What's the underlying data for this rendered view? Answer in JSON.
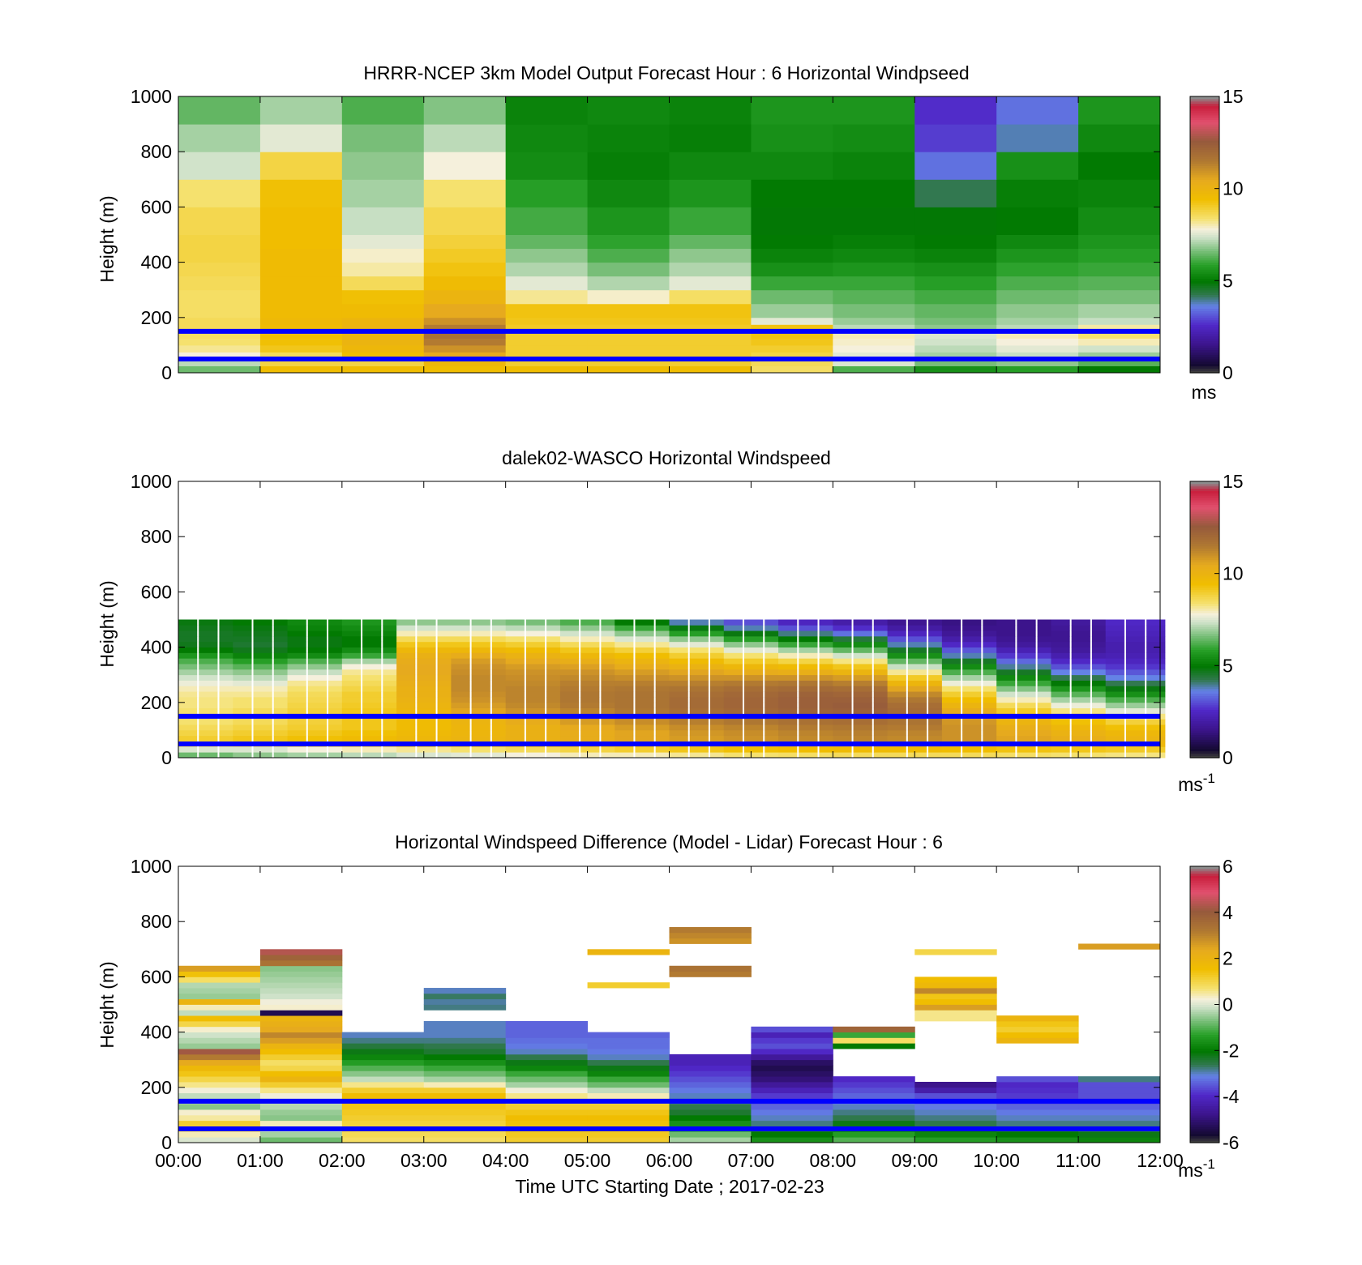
{
  "figure": {
    "x_ticks": [
      "00:00",
      "01:00",
      "02:00",
      "03:00",
      "04:00",
      "05:00",
      "06:00",
      "07:00",
      "08:00",
      "09:00",
      "10:00",
      "11:00",
      "12:00"
    ],
    "x_label": "Time UTC  Starting Date ; 2017-02-23",
    "reference_line_color": "#0000ff",
    "reference_heights_m": [
      50,
      150
    ]
  },
  "chart_data": [
    {
      "type": "heatmap",
      "title": "HRRR-NCEP 3km Model Output   Forecast Hour : 6 Horizontal Windpseed",
      "ylabel": "Height (m)",
      "xlabel": "",
      "ylim": [
        0,
        1000
      ],
      "y_ticks": [
        0,
        200,
        400,
        600,
        800,
        1000
      ],
      "colorbar": {
        "ticks": [
          0,
          5,
          10,
          15
        ],
        "unit": "ms",
        "unit_sup": "",
        "range": [
          0,
          15
        ]
      },
      "x_bins_hours": [
        0,
        1,
        2,
        3,
        4,
        5,
        6,
        7,
        8,
        9,
        10,
        11,
        12
      ],
      "y_bins_m": [
        0,
        25,
        50,
        75,
        100,
        125,
        150,
        175,
        200,
        250,
        300,
        350,
        400,
        450,
        500,
        600,
        700,
        800,
        900,
        1000
      ],
      "values": [
        [
          6.5,
          9.5,
          9.5,
          9.5,
          9.5,
          9.5,
          9.5,
          8.5,
          6.2,
          5.5,
          5.8,
          5.0
        ],
        [
          7.2,
          8.8,
          8.8,
          9.8,
          9.0,
          9.0,
          9.0,
          8.6,
          7.5,
          6.6,
          6.8,
          6.3
        ],
        [
          7.8,
          8.6,
          9.5,
          10.5,
          9.0,
          9.0,
          9.0,
          8.8,
          7.6,
          7.0,
          7.3,
          6.9
        ],
        [
          8.2,
          9.2,
          9.8,
          11.0,
          9.0,
          9.0,
          9.0,
          9.0,
          7.8,
          7.2,
          7.6,
          7.4
        ],
        [
          8.4,
          9.4,
          10.0,
          11.5,
          9.0,
          9.0,
          9.0,
          9.2,
          7.9,
          7.4,
          7.8,
          8.0
        ],
        [
          8.5,
          9.5,
          10.0,
          11.8,
          9.0,
          9.0,
          9.0,
          9.3,
          8.0,
          7.5,
          8.0,
          8.4
        ],
        [
          8.6,
          9.6,
          10.0,
          11.5,
          9.1,
          9.1,
          9.1,
          9.3,
          7.2,
          6.8,
          7.2,
          8.1
        ],
        [
          8.6,
          9.7,
          9.9,
          11.0,
          9.2,
          9.2,
          9.2,
          7.6,
          6.9,
          6.6,
          7.0,
          7.3
        ],
        [
          8.5,
          9.6,
          9.6,
          10.5,
          9.3,
          9.3,
          9.3,
          6.9,
          6.6,
          6.4,
          6.8,
          7.0
        ],
        [
          8.5,
          9.6,
          9.4,
          10.0,
          8.2,
          7.9,
          8.5,
          6.5,
          6.3,
          6.1,
          6.5,
          6.6
        ],
        [
          8.6,
          9.6,
          8.6,
          9.6,
          7.6,
          7.1,
          7.6,
          6.0,
          6.0,
          5.8,
          6.2,
          6.3
        ],
        [
          8.7,
          9.6,
          8.1,
          9.3,
          7.1,
          6.6,
          7.1,
          5.5,
          5.6,
          5.5,
          5.9,
          6.0
        ],
        [
          8.8,
          9.6,
          7.9,
          9.1,
          6.8,
          6.2,
          6.8,
          5.2,
          5.3,
          5.2,
          5.6,
          5.8
        ],
        [
          8.8,
          9.5,
          7.6,
          8.9,
          6.4,
          5.9,
          6.4,
          5.0,
          5.1,
          5.0,
          5.3,
          5.6
        ],
        [
          8.7,
          9.5,
          7.3,
          8.7,
          6.1,
          5.6,
          6.0,
          4.9,
          4.9,
          4.9,
          5.0,
          5.4
        ],
        [
          8.4,
          9.4,
          7.0,
          8.4,
          5.8,
          5.3,
          5.6,
          5.0,
          5.0,
          4.2,
          5.1,
          5.2
        ],
        [
          7.4,
          8.8,
          6.8,
          7.8,
          5.4,
          5.1,
          5.3,
          5.3,
          5.2,
          3.4,
          5.5,
          5.0
        ],
        [
          7.0,
          7.6,
          6.6,
          7.2,
          5.3,
          5.2,
          5.1,
          5.5,
          5.4,
          2.8,
          3.8,
          5.3
        ],
        [
          6.4,
          7.0,
          6.2,
          6.7,
          5.2,
          5.3,
          5.2,
          5.6,
          5.6,
          2.6,
          3.4,
          5.6
        ]
      ]
    },
    {
      "type": "heatmap",
      "title": "dalek02-WASCO  Horizontal Windspeed",
      "ylabel": "Height (m)",
      "xlabel": "",
      "ylim": [
        0,
        1000
      ],
      "y_ticks": [
        0,
        200,
        400,
        600,
        800,
        1000
      ],
      "colorbar": {
        "ticks": [
          0,
          5,
          10,
          15
        ],
        "unit": "ms",
        "unit_sup": "-1",
        "range": [
          0,
          15
        ]
      },
      "column_width_hours": 0.25,
      "bin_height_m": 20,
      "profiles": [
        [
          6.5,
          7.5,
          8.5,
          9.0,
          8.8,
          8.6,
          8.4,
          8.5,
          8.4,
          8.3,
          8.3,
          8.2,
          8.0,
          7.7,
          7.4,
          7.0,
          6.6,
          6.2,
          5.6,
          5.0,
          4.7,
          4.6,
          4.6,
          4.7,
          4.8
        ],
        [
          6.8,
          7.5,
          8.6,
          9.2,
          9.0,
          8.8,
          8.6,
          8.7,
          8.6,
          8.4,
          8.4,
          8.2,
          8.0,
          7.6,
          7.2,
          6.8,
          6.3,
          5.8,
          5.2,
          4.7,
          4.5,
          4.6,
          4.7,
          4.8,
          5.0
        ],
        [
          7.0,
          7.8,
          8.8,
          9.4,
          9.2,
          9.0,
          8.9,
          9.0,
          8.9,
          8.8,
          8.7,
          8.6,
          8.4,
          8.2,
          7.8,
          7.3,
          6.8,
          6.2,
          5.4,
          5.0,
          4.8,
          4.8,
          5.0,
          5.2,
          5.3
        ],
        [
          7.2,
          8.0,
          9.0,
          9.6,
          9.4,
          9.2,
          9.2,
          9.3,
          9.2,
          9.1,
          9.0,
          9.0,
          8.8,
          8.6,
          8.4,
          8.2,
          7.8,
          7.0,
          6.0,
          5.4,
          5.0,
          5.0,
          5.2,
          5.4,
          5.6
        ],
        [
          7.5,
          8.2,
          9.3,
          9.8,
          9.7,
          9.6,
          9.6,
          9.8,
          9.9,
          10.0,
          10.1,
          10.2,
          10.2,
          10.3,
          10.4,
          10.5,
          10.5,
          10.4,
          10.2,
          9.8,
          9.2,
          8.6,
          8.0,
          7.4,
          6.8
        ],
        [
          7.6,
          8.4,
          9.4,
          10.0,
          9.9,
          9.9,
          10.0,
          10.3,
          10.6,
          10.8,
          11.0,
          11.1,
          11.2,
          11.2,
          11.2,
          11.1,
          11.0,
          10.8,
          10.4,
          9.8,
          9.2,
          8.6,
          8.0,
          7.4,
          6.8
        ],
        [
          7.8,
          8.6,
          9.6,
          10.2,
          10.2,
          10.2,
          10.4,
          10.7,
          11.0,
          11.2,
          11.3,
          11.3,
          11.3,
          11.2,
          11.1,
          11.0,
          10.8,
          10.5,
          10.1,
          9.6,
          9.0,
          8.4,
          7.8,
          7.2,
          6.6
        ],
        [
          8.0,
          8.8,
          9.8,
          10.4,
          10.4,
          10.5,
          10.8,
          11.1,
          11.3,
          11.5,
          11.6,
          11.6,
          11.5,
          11.4,
          11.2,
          11.0,
          10.7,
          10.3,
          9.8,
          9.2,
          8.6,
          8.0,
          7.4,
          6.8,
          6.2
        ],
        [
          8.0,
          9.0,
          10.0,
          10.6,
          10.6,
          10.8,
          11.1,
          11.4,
          11.6,
          11.7,
          11.7,
          11.7,
          11.6,
          11.4,
          11.1,
          10.8,
          10.4,
          10.0,
          9.5,
          8.9,
          8.2,
          7.5,
          6.8,
          6.0,
          5.0
        ],
        [
          8.2,
          9.2,
          10.2,
          10.8,
          10.9,
          11.1,
          11.4,
          11.7,
          11.9,
          12.0,
          12.0,
          11.9,
          11.7,
          11.4,
          11.0,
          10.6,
          10.1,
          9.6,
          9.0,
          8.4,
          7.6,
          6.8,
          5.8,
          4.8,
          3.8
        ],
        [
          8.4,
          9.4,
          10.4,
          11.0,
          11.1,
          11.3,
          11.6,
          11.9,
          12.1,
          12.2,
          12.2,
          12.1,
          11.9,
          11.5,
          11.0,
          10.4,
          9.8,
          9.1,
          8.4,
          7.6,
          6.8,
          5.8,
          4.8,
          3.8,
          3.0
        ],
        [
          8.5,
          9.5,
          10.5,
          11.2,
          11.3,
          11.5,
          11.8,
          12.1,
          12.3,
          12.4,
          12.4,
          12.3,
          12.0,
          11.6,
          11.0,
          10.3,
          9.6,
          8.8,
          8.0,
          7.0,
          6.0,
          5.0,
          4.0,
          3.0,
          2.4
        ],
        [
          8.6,
          9.6,
          10.6,
          11.3,
          11.4,
          11.6,
          11.9,
          12.2,
          12.4,
          12.5,
          12.4,
          12.2,
          11.9,
          11.4,
          10.8,
          10.0,
          9.2,
          8.3,
          7.4,
          6.4,
          5.4,
          4.4,
          3.4,
          2.6,
          2.0
        ],
        [
          8.6,
          9.6,
          10.6,
          11.2,
          11.3,
          11.5,
          11.7,
          11.9,
          12.0,
          11.9,
          11.6,
          11.2,
          10.6,
          9.9,
          9.1,
          8.2,
          7.3,
          6.4,
          5.5,
          4.6,
          3.8,
          3.0,
          2.4,
          1.9,
          1.6
        ],
        [
          8.6,
          9.5,
          10.4,
          11.0,
          11.0,
          11.0,
          10.9,
          10.7,
          10.4,
          10.0,
          9.5,
          9.0,
          8.4,
          7.7,
          7.0,
          6.2,
          5.4,
          4.6,
          3.8,
          3.1,
          2.5,
          2.0,
          1.7,
          1.5,
          1.4
        ],
        [
          8.5,
          9.3,
          10.2,
          10.6,
          10.5,
          10.3,
          10.0,
          9.6,
          9.1,
          8.6,
          8.0,
          7.4,
          6.7,
          6.0,
          5.3,
          4.6,
          3.9,
          3.3,
          2.7,
          2.2,
          1.8,
          1.6,
          1.5,
          1.5,
          1.5
        ],
        [
          8.4,
          9.2,
          10.0,
          10.3,
          10.1,
          9.8,
          9.4,
          8.9,
          8.3,
          7.7,
          7.0,
          6.3,
          5.6,
          4.9,
          4.2,
          3.6,
          3.0,
          2.5,
          2.1,
          1.8,
          1.7,
          1.6,
          1.6,
          1.7,
          1.8
        ],
        [
          8.3,
          9.1,
          9.8,
          10.0,
          9.8,
          9.4,
          8.9,
          8.3,
          7.6,
          6.9,
          6.2,
          5.5,
          4.8,
          4.2,
          3.6,
          3.1,
          2.7,
          2.4,
          2.2,
          2.1,
          2.1,
          2.2,
          2.3,
          2.4,
          2.5
        ]
      ]
    },
    {
      "type": "heatmap",
      "title": "Horizontal Windspeed Difference (Model - Lidar) Forecast Hour : 6",
      "ylabel": "Height (m)",
      "xlabel": "Time UTC  Starting Date ; 2017-02-23",
      "ylim": [
        0,
        1000
      ],
      "y_ticks": [
        0,
        200,
        400,
        600,
        800,
        1000
      ],
      "colorbar": {
        "ticks": [
          -6,
          -4,
          -2,
          0,
          2,
          4,
          6
        ],
        "unit": "ms",
        "unit_sup": "-1",
        "range": [
          -6,
          6
        ]
      },
      "x_bins_hours": [
        0,
        1,
        2,
        3,
        4,
        5,
        6,
        7,
        8,
        9,
        10,
        11,
        12
      ],
      "bin_height_m": 20,
      "bands": [
        [
          0,
          0.4,
          0.8,
          1.2,
          0.5,
          0.3,
          -0.6,
          -0.4,
          -0.2,
          0.2,
          0.6,
          1.0,
          1.4,
          1.8,
          2.4,
          3.2,
          4.2,
          -0.5,
          -0.3,
          -0.1,
          0.3,
          1.0,
          1.6,
          -0.2,
          0.4,
          2.0,
          -0.5,
          -0.4,
          -0.3,
          0.8,
          1.5,
          2.6
        ],
        [
          -0.8,
          -0.4,
          -0.2,
          0.4,
          -0.6,
          -0.5,
          -0.3,
          -0.2,
          0.2,
          0.6,
          1.2,
          2.0,
          1.6,
          1.0,
          0.8,
          1.2,
          1.6,
          2.0,
          2.6,
          3.0,
          2.4,
          2.2,
          2.0,
          -5.4,
          0.3,
          0.2,
          -0.1,
          -0.2,
          -0.3,
          -0.4,
          -0.5,
          -0.6,
          3.4,
          3.8,
          4.4
        ],
        [
          0.8,
          0.9,
          1.0,
          1.1,
          1.2,
          1.3,
          1.4,
          1.5,
          1.6,
          1.2,
          0.6,
          -0.2,
          -0.6,
          -1.0,
          -1.4,
          -1.8,
          -2.2,
          -2.5,
          -2.8,
          -3.0
        ],
        [
          0.8,
          0.9,
          1.0,
          1.1,
          1.2,
          1.3,
          1.4,
          1.5,
          1.6,
          1.2,
          0.4,
          -0.4,
          -0.8,
          -1.2,
          -1.6,
          -2.0,
          -2.4,
          -2.6,
          -2.8,
          -3.0,
          -3.0,
          -3.0,
          null,
          null,
          -2.8,
          -2.9,
          -2.7,
          -3.0
        ],
        [
          1.2,
          1.3,
          1.4,
          1.5,
          1.6,
          1.4,
          1.2,
          1.0,
          0.6,
          0.2,
          -0.4,
          -0.8,
          -1.2,
          -1.8,
          -2.2,
          -2.6,
          -3.0,
          -3.2,
          -3.3,
          -3.4,
          -3.4,
          -3.4
        ],
        [
          1.2,
          1.3,
          1.4,
          1.5,
          1.6,
          1.4,
          1.2,
          1.0,
          0.4,
          -0.2,
          -0.8,
          -1.2,
          -1.8,
          -2.2,
          -2.6,
          -3.0,
          -3.2,
          -3.3,
          -3.3,
          -3.4,
          null,
          null,
          null,
          null,
          null,
          null,
          null,
          null,
          1.2,
          null,
          null,
          null,
          null,
          null,
          2.0
        ],
        [
          -0.4,
          -0.8,
          -1.2,
          -1.6,
          -2.0,
          -2.4,
          -2.6,
          -2.8,
          -3.0,
          -3.2,
          -3.4,
          -3.6,
          -3.8,
          -4.0,
          -4.2,
          -4.2,
          null,
          null,
          null,
          null,
          null,
          null,
          null,
          null,
          null,
          null,
          null,
          null,
          null,
          null,
          3.2,
          3.4,
          null,
          null,
          null,
          null,
          2.8,
          3.0,
          3.2
        ],
        [
          -1.6,
          -2.0,
          -2.4,
          -2.8,
          -3.0,
          -3.2,
          -3.4,
          -3.6,
          -3.8,
          -4.2,
          -4.6,
          -5.0,
          -5.2,
          -5.4,
          -5.2,
          -4.6,
          -4.0,
          -3.6,
          -3.8,
          -4.2,
          -3.6
        ],
        [
          -1.0,
          -1.4,
          -1.8,
          -2.2,
          -2.6,
          -2.8,
          -3.0,
          -3.2,
          -3.4,
          -3.6,
          -3.8,
          -4.0,
          null,
          null,
          null,
          null,
          null,
          -2.0,
          0.8,
          -1.2,
          3.8
        ],
        [
          -1.4,
          -1.8,
          -2.2,
          -2.6,
          -2.8,
          -3.0,
          -3.2,
          -3.4,
          -3.6,
          -4.4,
          -4.8,
          null,
          null,
          null,
          null,
          null,
          null,
          null,
          null,
          null,
          null,
          null,
          0.6,
          0.6,
          2.6,
          1.6,
          1.4,
          3.0,
          1.8,
          1.6,
          null,
          null,
          null,
          null,
          1.0
        ],
        [
          -1.6,
          -2.0,
          -2.4,
          -2.8,
          -3.0,
          -3.2,
          -3.4,
          -3.6,
          -3.8,
          -3.9,
          -4.0,
          -3.6,
          null,
          null,
          null,
          null,
          null,
          null,
          2.0,
          1.6,
          1.2,
          1.4,
          2.0
        ],
        [
          -1.8,
          -2.2,
          -2.6,
          -2.8,
          -3.0,
          -3.2,
          -3.4,
          -3.6,
          -3.6,
          -3.6,
          -3.6,
          -2.8,
          null,
          null,
          null,
          null,
          null,
          null,
          null,
          null,
          null,
          null,
          null,
          null,
          null,
          null,
          null,
          null,
          null,
          null,
          null,
          null,
          null,
          null,
          null,
          2.6
        ]
      ]
    }
  ]
}
